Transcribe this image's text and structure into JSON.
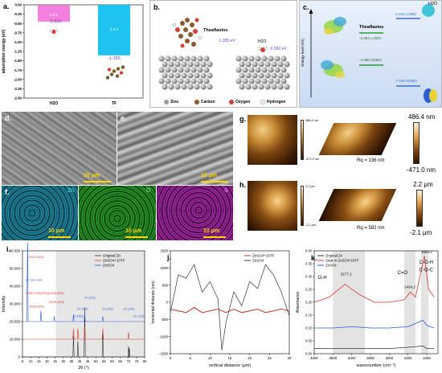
{
  "panel_a": {
    "label": "a.",
    "ylabel": "adsorption energy (eV)",
    "yticks": [
      "0.00",
      "-0.25",
      "-0.50",
      "-0.75",
      "-1.00",
      "-1.25",
      "-1.50",
      "-1.75",
      "-2.00",
      "-2.25",
      "-2.50"
    ],
    "xticks": [
      "H2O",
      "TF"
    ],
    "bar_h2o_value": "-0.550",
    "bar_tf_value": "-1.355",
    "box_h2o_text": "0 0 2",
    "box_tf_text": "0 0 2",
    "chart_data": {
      "type": "bar",
      "categories": [
        "H2O",
        "TF"
      ],
      "values": [
        -0.55,
        -1.355
      ],
      "ylim": [
        -2.5,
        0
      ]
    }
  },
  "panel_b": {
    "label": "b.",
    "tf_name": "Theaflavins",
    "tf_energy": "-1.355 eV",
    "h2o_name": "H2O",
    "h2o_energy": "-0.550 eV",
    "legend": [
      "Zinc",
      "Carbon",
      "Oxygen",
      "Hydrogen"
    ]
  },
  "panel_c": {
    "label": "c.",
    "ylabel": "Energy level (eV)",
    "tf_name": "Theaflavins",
    "h2o_name": "H2O",
    "tf_lumo": "-2.384 LUMO",
    "tf_homo": "-4.386 HOMO",
    "h2o_lumo": "-1.044 LUMO",
    "h2o_homo": "-7.168 HOMO"
  },
  "panel_d": {
    "label": "d.",
    "scale": "10 μm"
  },
  "panel_e": {
    "label": "e.",
    "scale": "10 μm"
  },
  "panel_f": {
    "label": "f.",
    "elements": [
      "Zn",
      "O",
      "S"
    ],
    "scale": "10 μm"
  },
  "panel_g": {
    "label": "g.",
    "cbar_top": "486.4 nm",
    "cbar_bottom": "-471.0 nm",
    "small_top": "486.4 nm",
    "small_bottom": "-471.0 nm",
    "roughness": "Rq = 136 nm"
  },
  "panel_h": {
    "label": "h.",
    "cbar_top": "2.2 μm",
    "cbar_bottom": "-2.1 μm",
    "small_top": "2.2 μm",
    "small_bottom": "-2.1 μm",
    "roughness": "Rq = 582 nm"
  },
  "panel_i": {
    "label": "i.",
    "ylabel": "Intensity",
    "xlabel": "2θ (°)",
    "yticks": [
      "0",
      "10,000",
      "20,000",
      "30,000",
      "40,000",
      "50,000",
      "60,000"
    ],
    "xticks": [
      "5",
      "10",
      "15",
      "20",
      "25",
      "30",
      "35",
      "40",
      "45",
      "50",
      "55",
      "60",
      "65",
      "70",
      "75",
      "80"
    ],
    "legend": [
      "Original Zn",
      "ZnSO4+10TF",
      "ZnSO4"
    ],
    "annotations": [
      "ZSOH (001)",
      "Zn: pure zinc",
      "ZSOH: Zn4(SO4)(OH)6·5H2O",
      "ZSOH (002)",
      "ZSOH (003)",
      "Zn (002)",
      "Zn (100)",
      "Zn (101)",
      "Zn (102)",
      "Zn (103)",
      "Zn (110)"
    ],
    "chart_data": {
      "type": "line",
      "x_range": [
        5,
        80
      ],
      "ylim": [
        0,
        60000
      ],
      "series": [
        {
          "name": "Original Zn",
          "peaks": [
            [
              36.3,
              12000
            ],
            [
              39.0,
              9000
            ],
            [
              43.2,
              28000
            ],
            [
              54.3,
              14000
            ],
            [
              70.1,
              6000
            ],
            [
              70.6,
              5000
            ]
          ],
          "baseline": 0
        },
        {
          "name": "ZnSO4+10TF",
          "peaks": [
            [
              36.3,
              6000
            ],
            [
              39.0,
              6000
            ],
            [
              43.2,
              7000
            ],
            [
              54.3,
              6000
            ],
            [
              70.1,
              4000
            ]
          ],
          "baseline": 10000
        },
        {
          "name": "ZnSO4",
          "peaks": [
            [
              8.1,
              50000
            ],
            [
              16.3,
              6000
            ],
            [
              24.5,
              3000
            ],
            [
              36.3,
              4000
            ],
            [
              43.2,
              4000
            ],
            [
              54.3,
              3000
            ]
          ],
          "baseline": 20000
        }
      ]
    }
  },
  "panel_j": {
    "label": "j.",
    "ylabel": "horizontal distance (nm)",
    "xlabel": "vertical distance (μm)",
    "yticks": [
      "1500",
      "1000",
      "500",
      "0",
      "-500",
      "-1000",
      "-1500"
    ],
    "xticks": [
      "0",
      "5",
      "10",
      "15",
      "20",
      "25",
      "30"
    ],
    "legend": [
      "ZnSO4+10TF",
      "ZnSO4"
    ],
    "chart_data": {
      "type": "line",
      "xlim": [
        0,
        30
      ],
      "ylim": [
        -1500,
        1500
      ],
      "series": [
        {
          "name": "ZnSO4+10TF",
          "x": [
            0,
            2,
            4,
            6,
            8,
            10,
            12,
            14,
            16,
            18,
            20,
            22,
            24,
            26,
            28,
            30
          ],
          "y": [
            -200,
            -250,
            -300,
            -150,
            -300,
            -250,
            -200,
            -300,
            -200,
            -300,
            -250,
            -200,
            -300,
            -250,
            -200,
            -250
          ]
        },
        {
          "name": "ZnSO4",
          "x": [
            0,
            2,
            4,
            6,
            8,
            10,
            12,
            13,
            14,
            16,
            18,
            20,
            22,
            24,
            26,
            28,
            30
          ],
          "y": [
            -300,
            800,
            700,
            1100,
            300,
            600,
            100,
            -1400,
            -600,
            300,
            -100,
            600,
            400,
            1100,
            800,
            300,
            -400
          ]
        }
      ]
    }
  },
  "panel_k": {
    "label": "k.",
    "ylabel": "Absorbance",
    "xlabel": "wavenumber (cm⁻¹)",
    "yticks": [
      "0.00",
      "0.05",
      "0.10",
      "0.15",
      "0.20",
      "0.25",
      "0.30",
      "0.35",
      "0.40"
    ],
    "xticks": [
      "4000",
      "3500",
      "3000",
      "2500",
      "2000",
      "1500",
      "1000"
    ],
    "legend": [
      "Original Zn",
      "Soak in ZnSO4+10TF",
      "ZnSO4"
    ],
    "annotations": [
      "O-H",
      "3177.1",
      "C=O",
      "1434.2",
      "C-O-H",
      "C-O-C",
      "1063.2"
    ],
    "chart_data": {
      "type": "line",
      "xlim": [
        4000,
        700
      ],
      "ylim": [
        0,
        0.4
      ],
      "series": [
        {
          "name": "Original Zn",
          "x": [
            4000,
            3500,
            3000,
            2500,
            2000,
            1500,
            1100,
            1000,
            800
          ],
          "y": [
            0.02,
            0.02,
            0.02,
            0.02,
            0.02,
            0.025,
            0.03,
            0.02,
            0.02
          ]
        },
        {
          "name": "Soak in ZnSO4+10TF",
          "x": [
            4000,
            3600,
            3177,
            2800,
            2400,
            2000,
            1600,
            1434,
            1300,
            1063,
            950,
            800
          ],
          "y": [
            0.2,
            0.22,
            0.27,
            0.23,
            0.2,
            0.2,
            0.21,
            0.24,
            0.22,
            0.38,
            0.25,
            0.22
          ]
        },
        {
          "name": "ZnSO4",
          "x": [
            4000,
            3500,
            3000,
            2500,
            2000,
            1500,
            1100,
            1000,
            800
          ],
          "y": [
            0.1,
            0.1,
            0.105,
            0.1,
            0.1,
            0.105,
            0.13,
            0.11,
            0.1
          ]
        }
      ]
    }
  }
}
